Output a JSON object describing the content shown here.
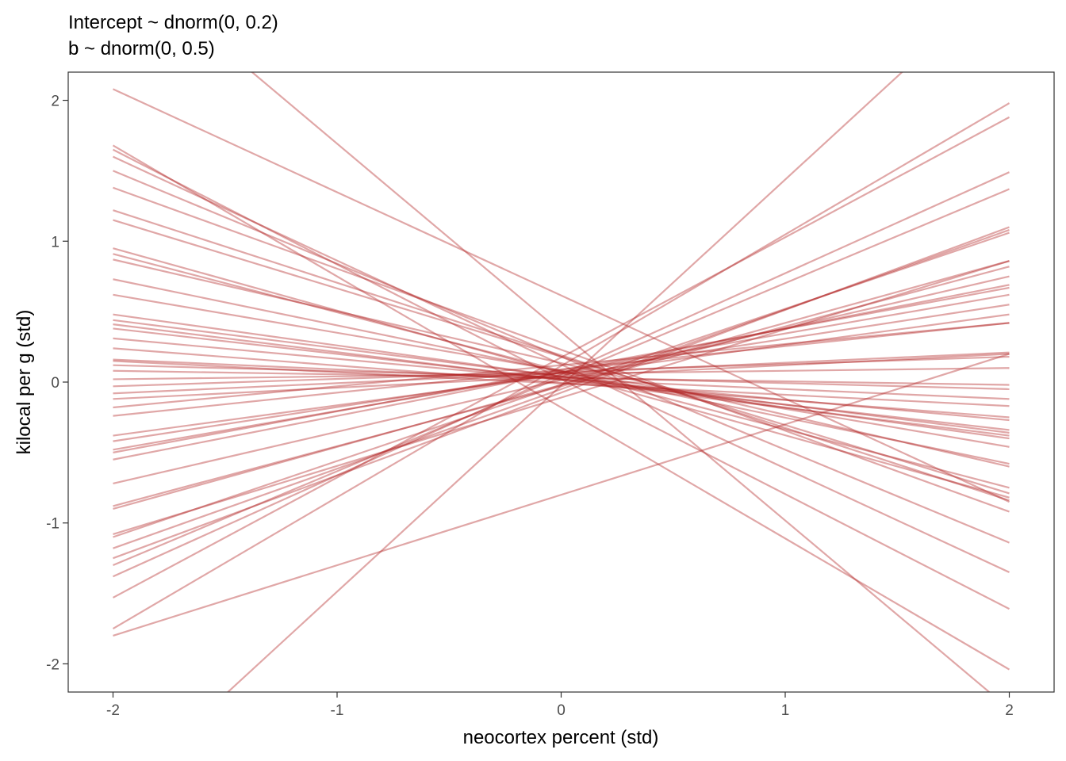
{
  "chart_data": {
    "type": "line",
    "title_line1": "Intercept ~ dnorm(0, 0.2)",
    "title_line2": "b ~ dnorm(0, 0.5)",
    "xlabel": "neocortex percent (std)",
    "ylabel": "kilocal per g (std)",
    "xlim": [
      -2.2,
      2.2
    ],
    "ylim": [
      -2.2,
      2.2
    ],
    "x_ticks": [
      -2,
      -1,
      0,
      1,
      2
    ],
    "x_tick_labels": [
      "-2",
      "-1",
      "0",
      "1",
      "2"
    ],
    "y_ticks": [
      -2,
      -1,
      0,
      1,
      2
    ],
    "y_tick_labels": [
      "-2",
      "-1",
      "0",
      "1",
      "2"
    ],
    "grid": false,
    "line_color": "#B22222",
    "line_opacity": 0.4,
    "x_range": [
      -2,
      2
    ],
    "series": [
      {
        "y_at_x_min": 3.03,
        "y_at_x_max": -2.32
      },
      {
        "y_at_x_min": 2.08,
        "y_at_x_max": -0.85
      },
      {
        "y_at_x_min": 1.68,
        "y_at_x_max": -2.04
      },
      {
        "y_at_x_min": 1.65,
        "y_at_x_max": -1.61
      },
      {
        "y_at_x_min": 1.6,
        "y_at_x_max": -1.35
      },
      {
        "y_at_x_min": 1.5,
        "y_at_x_max": -1.14
      },
      {
        "y_at_x_min": 1.38,
        "y_at_x_max": -0.92
      },
      {
        "y_at_x_min": 1.22,
        "y_at_x_max": -0.84
      },
      {
        "y_at_x_min": 1.15,
        "y_at_x_max": -0.79
      },
      {
        "y_at_x_min": 0.95,
        "y_at_x_max": -0.82
      },
      {
        "y_at_x_min": 0.91,
        "y_at_x_max": -0.75
      },
      {
        "y_at_x_min": 0.87,
        "y_at_x_max": -0.6
      },
      {
        "y_at_x_min": 0.73,
        "y_at_x_max": -0.58
      },
      {
        "y_at_x_min": 0.62,
        "y_at_x_max": -0.46
      },
      {
        "y_at_x_min": 0.48,
        "y_at_x_max": -0.4
      },
      {
        "y_at_x_min": 0.44,
        "y_at_x_max": -0.36
      },
      {
        "y_at_x_min": 0.41,
        "y_at_x_max": -0.38
      },
      {
        "y_at_x_min": 0.38,
        "y_at_x_max": -0.34
      },
      {
        "y_at_x_min": 0.31,
        "y_at_x_max": -0.27
      },
      {
        "y_at_x_min": 0.24,
        "y_at_x_max": -0.25
      },
      {
        "y_at_x_min": 0.16,
        "y_at_x_max": -0.12
      },
      {
        "y_at_x_min": 0.15,
        "y_at_x_max": -0.17
      },
      {
        "y_at_x_min": 0.12,
        "y_at_x_max": -0.05
      },
      {
        "y_at_x_min": 0.08,
        "y_at_x_max": -0.02
      },
      {
        "y_at_x_min": 0.02,
        "y_at_x_max": 0.1
      },
      {
        "y_at_x_min": -0.03,
        "y_at_x_max": 0.18
      },
      {
        "y_at_x_min": -0.08,
        "y_at_x_max": 0.21
      },
      {
        "y_at_x_min": -0.12,
        "y_at_x_max": 0.2
      },
      {
        "y_at_x_min": -0.18,
        "y_at_x_max": 0.42
      },
      {
        "y_at_x_min": -0.24,
        "y_at_x_max": 0.42
      },
      {
        "y_at_x_min": -0.38,
        "y_at_x_max": 0.48
      },
      {
        "y_at_x_min": -0.42,
        "y_at_x_max": 0.55
      },
      {
        "y_at_x_min": -0.48,
        "y_at_x_max": 0.62
      },
      {
        "y_at_x_min": -0.5,
        "y_at_x_max": 0.67
      },
      {
        "y_at_x_min": -0.55,
        "y_at_x_max": 0.69
      },
      {
        "y_at_x_min": -0.72,
        "y_at_x_max": 0.75
      },
      {
        "y_at_x_min": -0.88,
        "y_at_x_max": 0.82
      },
      {
        "y_at_x_min": -0.9,
        "y_at_x_max": 0.86
      },
      {
        "y_at_x_min": -1.08,
        "y_at_x_max": 0.86
      },
      {
        "y_at_x_min": -1.1,
        "y_at_x_max": 1.06
      },
      {
        "y_at_x_min": -1.18,
        "y_at_x_max": 1.08
      },
      {
        "y_at_x_min": -1.25,
        "y_at_x_max": 1.1
      },
      {
        "y_at_x_min": -1.3,
        "y_at_x_max": 1.37
      },
      {
        "y_at_x_min": -1.38,
        "y_at_x_max": 1.49
      },
      {
        "y_at_x_min": -1.53,
        "y_at_x_max": 1.88
      },
      {
        "y_at_x_min": -1.75,
        "y_at_x_max": 1.98
      },
      {
        "y_at_x_min": -1.8,
        "y_at_x_max": 0.2
      },
      {
        "y_at_x_min": -2.95,
        "y_at_x_max": 2.9
      }
    ]
  }
}
